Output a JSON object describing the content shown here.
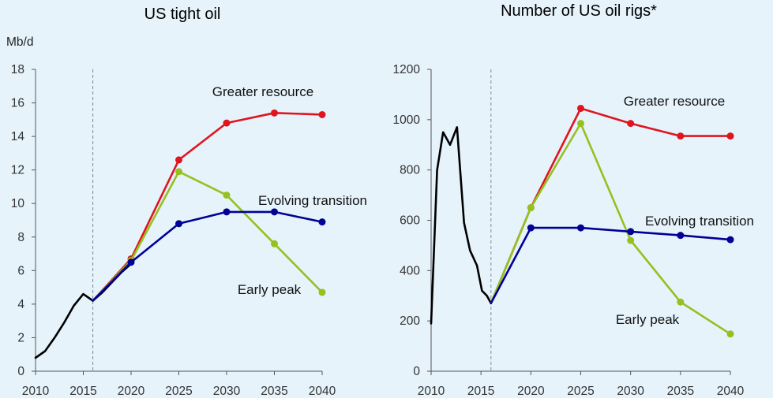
{
  "chart_data": [
    {
      "type": "line",
      "title": "US tight oil",
      "ylabel": "Mb/d",
      "xlabel": "",
      "ylim": [
        0,
        18
      ],
      "xlim": [
        2010,
        2040
      ],
      "yticks": [
        0,
        2,
        4,
        6,
        8,
        10,
        12,
        14,
        16,
        18
      ],
      "xticks": [
        2010,
        2015,
        2020,
        2025,
        2030,
        2035,
        2040
      ],
      "divider_x": 2016,
      "grid": false,
      "series": [
        {
          "name": "",
          "color": "#000000",
          "markers": false,
          "x": [
            2010,
            2011,
            2012,
            2013,
            2014,
            2015,
            2016,
            2017,
            2018,
            2019,
            2020
          ],
          "y": [
            0.8,
            1.2,
            2.0,
            2.9,
            3.9,
            4.6,
            4.2,
            4.7,
            5.3,
            5.9,
            6.4
          ]
        },
        {
          "name": "Greater resource",
          "color": "#e0141e",
          "markers": true,
          "x": [
            2016,
            2020,
            2025,
            2030,
            2035,
            2040
          ],
          "y": [
            4.2,
            6.7,
            12.6,
            14.8,
            15.4,
            15.3
          ]
        },
        {
          "name": "Early peak",
          "color": "#95c11f",
          "markers": true,
          "x": [
            2016,
            2020,
            2025,
            2030,
            2035,
            2040
          ],
          "y": [
            4.2,
            6.6,
            11.9,
            10.5,
            7.6,
            4.7
          ]
        },
        {
          "name": "Evolving transition",
          "color": "#000096",
          "markers": true,
          "x": [
            2016,
            2020,
            2025,
            2030,
            2035,
            2040
          ],
          "y": [
            4.2,
            6.5,
            8.8,
            9.5,
            9.5,
            8.9
          ]
        }
      ],
      "annotations": [
        "Greater resource",
        "Evolving transition",
        "Early peak"
      ]
    },
    {
      "type": "line",
      "title": "Number of US oil rigs*",
      "ylabel": "",
      "xlabel": "",
      "ylim": [
        0,
        1200
      ],
      "xlim": [
        2010,
        2040
      ],
      "yticks": [
        0,
        200,
        400,
        600,
        800,
        1000,
        1200
      ],
      "xticks": [
        2010,
        2015,
        2020,
        2025,
        2030,
        2035,
        2040
      ],
      "divider_x": 2016,
      "grid": false,
      "series": [
        {
          "name": "",
          "color": "#000000",
          "markers": false,
          "x": [
            2010,
            2010.6,
            2011.2,
            2011.9,
            2012.6,
            2013.3,
            2013.9,
            2014.6,
            2015.1,
            2015.6,
            2016
          ],
          "y": [
            190,
            800,
            950,
            900,
            970,
            590,
            480,
            420,
            320,
            300,
            270
          ]
        },
        {
          "name": "Greater resource",
          "color": "#e0141e",
          "markers": true,
          "x": [
            2016,
            2020,
            2025,
            2030,
            2035,
            2040
          ],
          "y": [
            270,
            650,
            1045,
            985,
            935,
            935
          ]
        },
        {
          "name": "Early peak",
          "color": "#95c11f",
          "markers": true,
          "x": [
            2016,
            2020,
            2025,
            2030,
            2035,
            2040
          ],
          "y": [
            270,
            650,
            985,
            520,
            275,
            148
          ]
        },
        {
          "name": "Evolving transition",
          "color": "#000096",
          "markers": true,
          "x": [
            2016,
            2020,
            2025,
            2030,
            2035,
            2040
          ],
          "y": [
            270,
            570,
            570,
            555,
            540,
            523
          ]
        }
      ],
      "annotations": [
        "Greater resource",
        "Evolving transition",
        "Early peak"
      ]
    }
  ]
}
